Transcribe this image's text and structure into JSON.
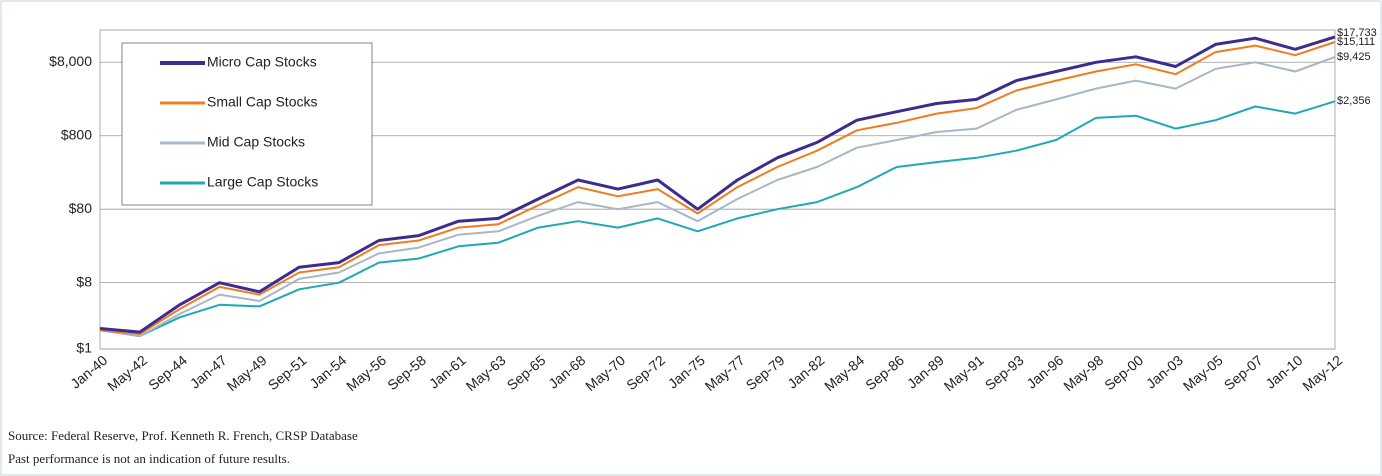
{
  "chart_data": {
    "type": "line",
    "categories": [
      "Jan-40",
      "May-42",
      "Sep-44",
      "Jan-47",
      "May-49",
      "Sep-51",
      "Jan-54",
      "May-56",
      "Sep-58",
      "Jan-61",
      "May-63",
      "Sep-65",
      "Jan-68",
      "May-70",
      "Sep-72",
      "Jan-75",
      "May-77",
      "Sep-79",
      "Jan-82",
      "May-84",
      "Sep-86",
      "Jan-89",
      "May-91",
      "Sep-93",
      "Jan-96",
      "May-98",
      "Sep-00",
      "Jan-03",
      "May-05",
      "Sep-07",
      "Jan-10",
      "May-12"
    ],
    "series": [
      {
        "name": "Micro Cap Stocks",
        "color": "#3d2b8e",
        "values": [
          1.9,
          1.7,
          4,
          8,
          6,
          13,
          15,
          30,
          35,
          55,
          60,
          110,
          200,
          150,
          200,
          80,
          200,
          400,
          650,
          1300,
          1700,
          2200,
          2500,
          4500,
          6000,
          8000,
          9500,
          7000,
          14000,
          17000,
          12000,
          17733
        ],
        "value_labels": [
          null,
          null,
          null,
          null,
          null,
          null,
          null,
          null,
          null,
          null,
          null,
          null,
          null,
          null,
          null,
          null,
          null,
          null,
          null,
          null,
          null,
          null,
          null,
          null,
          null,
          null,
          null,
          null,
          null,
          null,
          null,
          "$17,733"
        ]
      },
      {
        "name": "Small Cap Stocks",
        "color": "#f07c21",
        "values": [
          1.8,
          1.6,
          3.5,
          7,
          5.5,
          11,
          13,
          26,
          30,
          45,
          50,
          90,
          160,
          120,
          150,
          70,
          160,
          300,
          500,
          950,
          1200,
          1600,
          1900,
          3300,
          4500,
          6000,
          7500,
          5500,
          11000,
          13500,
          10000,
          15111
        ],
        "value_labels": [
          null,
          null,
          null,
          null,
          null,
          null,
          null,
          null,
          null,
          null,
          null,
          null,
          null,
          null,
          null,
          null,
          null,
          null,
          null,
          null,
          null,
          null,
          null,
          null,
          null,
          null,
          null,
          null,
          null,
          null,
          null,
          "$15,111"
        ]
      },
      {
        "name": "Mid Cap Stocks",
        "color": "#a9b6c6",
        "values": [
          1.8,
          1.5,
          3,
          5.5,
          4.5,
          9,
          11,
          20,
          24,
          36,
          40,
          65,
          100,
          80,
          100,
          55,
          110,
          200,
          300,
          550,
          700,
          900,
          1000,
          1800,
          2500,
          3500,
          4500,
          3500,
          6500,
          8000,
          6000,
          9425
        ],
        "value_labels": [
          null,
          null,
          null,
          null,
          null,
          null,
          null,
          null,
          null,
          null,
          null,
          null,
          null,
          null,
          null,
          null,
          null,
          null,
          null,
          null,
          null,
          null,
          null,
          null,
          null,
          null,
          null,
          null,
          null,
          null,
          null,
          "$9,425"
        ]
      },
      {
        "name": "Large Cap Stocks",
        "color": "#1fa8b5",
        "values": [
          1.8,
          1.5,
          2.7,
          4,
          3.8,
          6.5,
          8,
          15,
          17,
          25,
          28,
          45,
          55,
          45,
          60,
          40,
          60,
          80,
          100,
          160,
          300,
          350,
          400,
          500,
          700,
          1400,
          1500,
          1000,
          1300,
          2000,
          1600,
          2356
        ],
        "value_labels": [
          null,
          null,
          null,
          null,
          null,
          null,
          null,
          null,
          null,
          null,
          null,
          null,
          null,
          null,
          null,
          null,
          null,
          null,
          null,
          null,
          null,
          null,
          null,
          null,
          null,
          null,
          null,
          null,
          null,
          null,
          null,
          "$2,356"
        ]
      }
    ],
    "ylim": [
      1,
      22000
    ],
    "log_y": true,
    "yticks": [
      {
        "value": 1,
        "label": "$1"
      },
      {
        "value": 8,
        "label": "$8"
      },
      {
        "value": 80,
        "label": "$80"
      },
      {
        "value": 800,
        "label": "$800"
      },
      {
        "value": 8000,
        "label": "$8,000"
      }
    ],
    "grid": true,
    "legend": "upper left",
    "source": "Source:  Federal Reserve, Prof. Kenneth R. French, CRSP Database",
    "note": "Past performance is not an indication of future results."
  }
}
